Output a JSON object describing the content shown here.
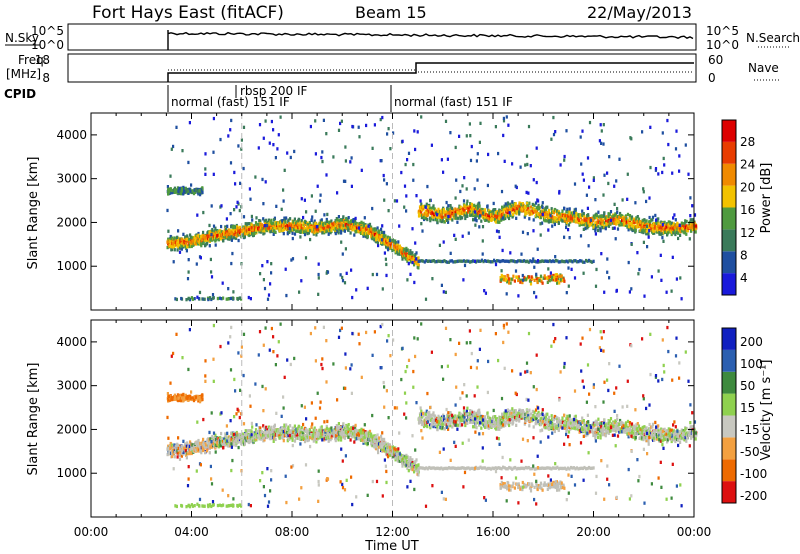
{
  "header": {
    "station": "Fort Hays East (fitACF)",
    "beam": "Beam 15",
    "date": "22/May/2013"
  },
  "colors": {
    "power_scale": [
      "#1a1adb",
      "#1f4fa0",
      "#3a7a5a",
      "#4f9a3f",
      "#f2c200",
      "#f08a00",
      "#e83c00",
      "#dd0000"
    ],
    "velocity_scale": [
      "#dd1010",
      "#ee6a00",
      "#f3a040",
      "#c8c8c0",
      "#8fd14f",
      "#3e8a3e",
      "#2b5fb0",
      "#1020c0"
    ],
    "ground_scatter": "#c0c0b8"
  },
  "nsky_panel": {
    "left_label": "N.Sky",
    "left_ticks": [
      "10^5",
      "10^0"
    ],
    "right_ticks": [
      "10^5",
      "10^0"
    ],
    "right_label": "N.Search"
  },
  "freq_panel": {
    "left_label_1": "Freq.",
    "left_label_2": "[MHz]",
    "left_ticks": [
      "18",
      "8"
    ],
    "right_ticks": [
      "60",
      "0"
    ],
    "right_label": "Nave"
  },
  "cpid": {
    "label": "CPID",
    "segments": [
      {
        "text": "normal (fast) 151 IF"
      },
      {
        "text": "rbsp 200 IF"
      },
      {
        "text": "normal (fast) 151 IF"
      }
    ]
  },
  "chart_data": [
    {
      "type": "heatmap",
      "panel": "power",
      "ylabel": "Slant Range [km]",
      "ylim": [
        0,
        4500
      ],
      "yticks": [
        "1000",
        "2000",
        "3000",
        "4000"
      ],
      "xlim_hours": [
        0,
        24
      ],
      "colorbar_label": "Power [dB]",
      "colorbar_ticks": [
        "28",
        "24",
        "20",
        "16",
        "12",
        "8",
        "4"
      ],
      "main_band": {
        "time_h": [
          3.0,
          4.0,
          5.0,
          6.0,
          7.0,
          8.0,
          9.0,
          10.0,
          11.0,
          12.0,
          12.5,
          13.0
        ],
        "range_km": [
          1550,
          1600,
          1750,
          1850,
          1950,
          1950,
          1900,
          2000,
          1850,
          1500,
          1300,
          1100
        ]
      },
      "later_band": {
        "time_h": [
          13.0,
          14.0,
          15.0,
          16.0,
          17.0,
          18.0,
          19.0,
          20.0,
          21.0,
          22.0,
          23.0,
          24.0
        ],
        "range_km": [
          2300,
          2200,
          2350,
          2150,
          2400,
          2200,
          2150,
          2050,
          2100,
          1950,
          1900,
          1950
        ]
      }
    },
    {
      "type": "heatmap",
      "panel": "velocity",
      "ylabel": "Slant Range [km]",
      "ylim": [
        0,
        4500
      ],
      "yticks": [
        "1000",
        "2000",
        "3000",
        "4000"
      ],
      "xlim_hours": [
        0,
        24
      ],
      "xlabel": "Time UT",
      "xticks": [
        "00:00",
        "04:00",
        "08:00",
        "12:00",
        "16:00",
        "20:00",
        "00:00"
      ],
      "colorbar_label": "Velocity [m s⁻¹]",
      "colorbar_ticks": [
        "200",
        "100",
        "50",
        "15",
        "-15",
        "-50",
        "-100",
        "-200"
      ]
    }
  ]
}
